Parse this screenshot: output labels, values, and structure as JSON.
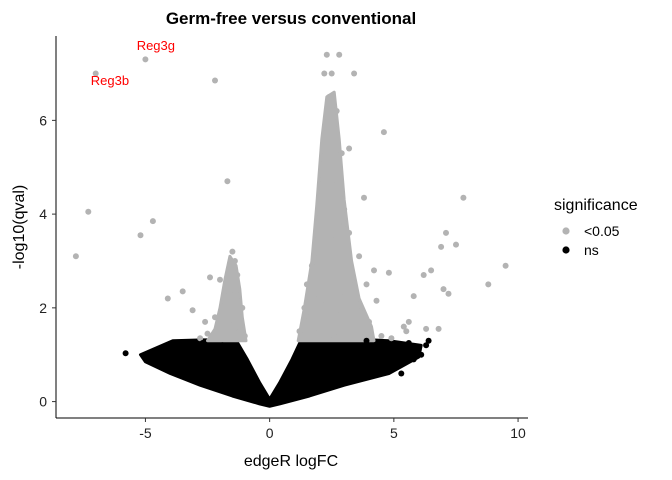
{
  "chart_data": {
    "type": "scatter",
    "title": "Germ-free versus conventional",
    "xlabel": "edgeR logFC",
    "ylabel": "-log10(qval)",
    "xlim": [
      -8.6,
      10.4
    ],
    "ylim": [
      -0.35,
      7.8
    ],
    "xticks": [
      -5,
      0,
      5,
      10
    ],
    "xtick_labels": [
      "-5",
      "0",
      "5",
      "10"
    ],
    "yticks": [
      0,
      2,
      4,
      6
    ],
    "ytick_labels": [
      "0",
      "2",
      "4",
      "6"
    ],
    "grid": false,
    "legend": {
      "title": "significance",
      "position": "right",
      "entries": [
        {
          "label": "<0.05",
          "color": "#b3b3b3"
        },
        {
          "label": "ns",
          "color": "#000000"
        }
      ]
    },
    "series": [
      {
        "name": "<0.05",
        "color": "#b3b3b3",
        "points": [
          [
            -7.0,
            7.0
          ],
          [
            -5.0,
            7.3
          ],
          [
            -7.8,
            3.1
          ],
          [
            -7.3,
            4.05
          ],
          [
            -5.2,
            3.55
          ],
          [
            -4.7,
            3.85
          ],
          [
            -2.2,
            6.85
          ],
          [
            -1.7,
            4.7
          ],
          [
            -4.1,
            2.2
          ],
          [
            -3.5,
            2.35
          ],
          [
            -2.4,
            2.65
          ],
          [
            -2.0,
            2.6
          ],
          [
            -3.1,
            1.95
          ],
          [
            -2.6,
            1.7
          ],
          [
            -1.5,
            3.2
          ],
          [
            -1.4,
            3.0
          ],
          [
            -1.3,
            2.7
          ],
          [
            -1.6,
            2.3
          ],
          [
            -1.8,
            2.05
          ],
          [
            -2.2,
            1.8
          ],
          [
            -1.9,
            1.55
          ],
          [
            -1.2,
            1.5
          ],
          [
            -2.5,
            1.45
          ],
          [
            -1.0,
            1.4
          ],
          [
            -1.5,
            1.75
          ],
          [
            -1.1,
            2.0
          ],
          [
            -2.8,
            1.35
          ],
          [
            -1.3,
            1.6
          ],
          [
            2.3,
            7.4
          ],
          [
            2.8,
            7.4
          ],
          [
            2.2,
            7.0
          ],
          [
            2.5,
            7.0
          ],
          [
            3.4,
            7.0
          ],
          [
            2.4,
            6.5
          ],
          [
            2.7,
            6.2
          ],
          [
            2.3,
            5.9
          ],
          [
            2.6,
            5.6
          ],
          [
            2.9,
            5.3
          ],
          [
            2.1,
            5.0
          ],
          [
            2.5,
            4.7
          ],
          [
            2.8,
            4.4
          ],
          [
            3.0,
            4.1
          ],
          [
            2.2,
            3.9
          ],
          [
            1.9,
            3.6
          ],
          [
            2.4,
            3.3
          ],
          [
            2.0,
            3.1
          ],
          [
            1.7,
            2.9
          ],
          [
            2.6,
            2.8
          ],
          [
            3.3,
            2.6
          ],
          [
            1.5,
            2.5
          ],
          [
            2.1,
            2.4
          ],
          [
            2.8,
            2.3
          ],
          [
            1.8,
            2.2
          ],
          [
            2.3,
            2.1
          ],
          [
            3.5,
            2.0
          ],
          [
            1.4,
            2.0
          ],
          [
            2.9,
            1.9
          ],
          [
            1.6,
            1.8
          ],
          [
            2.2,
            1.7
          ],
          [
            3.1,
            1.6
          ],
          [
            1.2,
            1.5
          ],
          [
            2.0,
            1.5
          ],
          [
            2.6,
            1.4
          ],
          [
            3.7,
            1.5
          ],
          [
            4.0,
            1.7
          ],
          [
            4.5,
            1.4
          ],
          [
            3.3,
            1.4
          ],
          [
            1.9,
            2.7
          ],
          [
            2.4,
            4.2
          ],
          [
            2.7,
            3.5
          ],
          [
            4.6,
            5.75
          ],
          [
            3.2,
            5.4
          ],
          [
            3.8,
            4.35
          ],
          [
            3.0,
            3.8
          ],
          [
            3.2,
            3.6
          ],
          [
            4.2,
            2.8
          ],
          [
            3.9,
            2.5
          ],
          [
            4.8,
            2.75
          ],
          [
            5.8,
            2.25
          ],
          [
            6.5,
            2.8
          ],
          [
            5.6,
            1.7
          ],
          [
            6.2,
            2.7
          ],
          [
            7.0,
            2.4
          ],
          [
            7.1,
            3.6
          ],
          [
            6.9,
            3.3
          ],
          [
            7.5,
            3.35
          ],
          [
            7.8,
            4.35
          ],
          [
            9.5,
            2.9
          ],
          [
            8.8,
            2.5
          ],
          [
            7.2,
            2.3
          ],
          [
            6.8,
            1.55
          ],
          [
            5.4,
            1.6
          ],
          [
            4.9,
            1.35
          ],
          [
            5.5,
            1.5
          ],
          [
            6.3,
            1.55
          ],
          [
            3.6,
            3.1
          ],
          [
            4.3,
            2.15
          ]
        ]
      },
      {
        "name": "ns",
        "color": "#000000",
        "points": [
          [
            -5.8,
            1.03
          ],
          [
            -3.7,
            0.75
          ],
          [
            -3.5,
            1.05
          ],
          [
            -3.2,
            0.95
          ],
          [
            -3.6,
            1.2
          ],
          [
            -2.9,
            0.85
          ],
          [
            -3.0,
            1.15
          ],
          [
            -2.6,
            0.6
          ],
          [
            -2.3,
            0.7
          ],
          [
            -3.3,
            0.55
          ],
          [
            -2.7,
            1.25
          ],
          [
            -1.9,
            1.2
          ],
          [
            -2.4,
            1.0
          ],
          [
            -2.0,
            0.5
          ],
          [
            -3.1,
            0.8
          ],
          [
            -2.2,
            0.9
          ],
          [
            -1.7,
            0.85
          ],
          [
            -2.8,
            0.65
          ],
          [
            5.0,
            1.2
          ],
          [
            5.5,
            1.05
          ],
          [
            6.0,
            1.1
          ],
          [
            6.3,
            1.2
          ],
          [
            5.8,
            0.9
          ],
          [
            4.6,
            1.25
          ],
          [
            4.3,
            0.8
          ],
          [
            5.2,
            0.85
          ],
          [
            6.1,
            1.0
          ],
          [
            4.0,
            1.1
          ],
          [
            4.8,
            0.95
          ],
          [
            3.7,
            0.7
          ],
          [
            5.6,
            1.25
          ],
          [
            6.4,
            1.3
          ],
          [
            4.4,
            1.0
          ],
          [
            3.9,
            1.3
          ],
          [
            5.3,
            0.6
          ],
          [
            4.1,
            0.55
          ],
          [
            4.9,
            0.75
          ],
          [
            3.6,
            1.0
          ]
        ]
      }
    ],
    "annotations": [
      {
        "text": "Reg3g",
        "x": -5.35,
        "y": 7.5,
        "color": "#ff0000"
      },
      {
        "text": "Reg3b",
        "x": -7.2,
        "y": 6.75,
        "color": "#ff0000"
      }
    ]
  }
}
